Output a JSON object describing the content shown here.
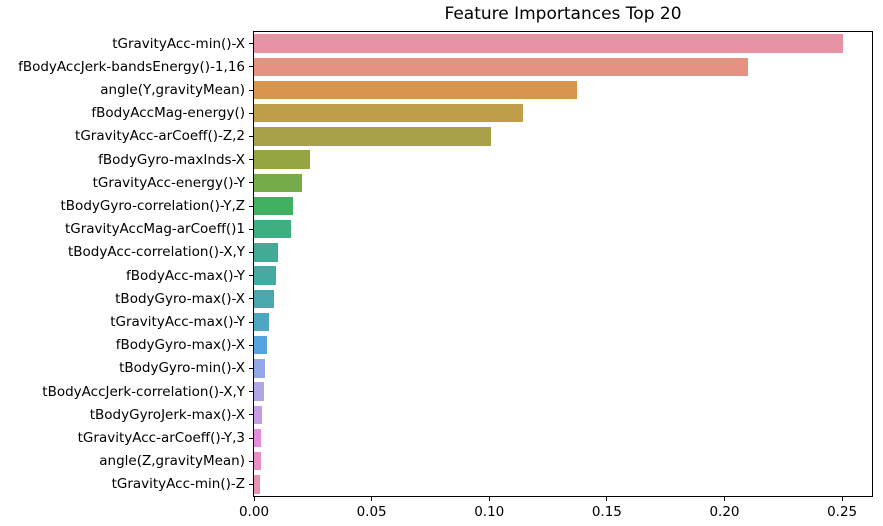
{
  "figure": {
    "title": "Feature Importances Top 20"
  },
  "chart_data": {
    "type": "bar",
    "orientation": "horizontal",
    "title": "Feature Importances Top 20",
    "xlabel": "",
    "ylabel": "",
    "categories": [
      "tGravityAcc-min()-X",
      "fBodyAccJerk-bandsEnergy()-1,16",
      "angle(Y,gravityMean)",
      "fBodyAccMag-energy()",
      "tGravityAcc-arCoeff()-Z,2",
      "fBodyGyro-maxInds-X",
      "tGravityAcc-energy()-Y",
      "tBodyGyro-correlation()-Y,Z",
      "tGravityAccMag-arCoeff()1",
      "tBodyAcc-correlation()-X,Y",
      "fBodyAcc-max()-Y",
      "tBodyGyro-max()-X",
      "tGravityAcc-max()-Y",
      "fBodyGyro-max()-X",
      "tBodyGyro-min()-X",
      "tBodyAccJerk-correlation()-X,Y",
      "tBodyGyroJerk-max()-X",
      "tGravityAcc-arCoeff()-Y,3",
      "angle(Z,gravityMean)",
      "tGravityAcc-min()-Z"
    ],
    "values": [
      0.2503,
      0.2102,
      0.1373,
      0.1142,
      0.1007,
      0.0236,
      0.0202,
      0.0164,
      0.0156,
      0.01,
      0.0092,
      0.0083,
      0.0064,
      0.0054,
      0.0047,
      0.0042,
      0.0033,
      0.0028,
      0.0028,
      0.0026
    ],
    "bar_colors": [
      "#e893a3",
      "#e59282",
      "#d9954e",
      "#c09d48",
      "#a9a14a",
      "#95a542",
      "#76ab49",
      "#41b060",
      "#3fae81",
      "#41ab95",
      "#44aaa2",
      "#48a8ae",
      "#4ea6c3",
      "#55a3df",
      "#94a8e8",
      "#b1a5e8",
      "#c89de8",
      "#e28de0",
      "#e78fc5",
      "#e892ab"
    ],
    "xlim": [
      0,
      0.2627
    ],
    "xticks": [
      0,
      0.05,
      0.1,
      0.15,
      0.2,
      0.25
    ],
    "xtick_labels": [
      "0.00",
      "0.05",
      "0.10",
      "0.15",
      "0.20",
      "0.25"
    ],
    "grid": false,
    "legend": false
  }
}
